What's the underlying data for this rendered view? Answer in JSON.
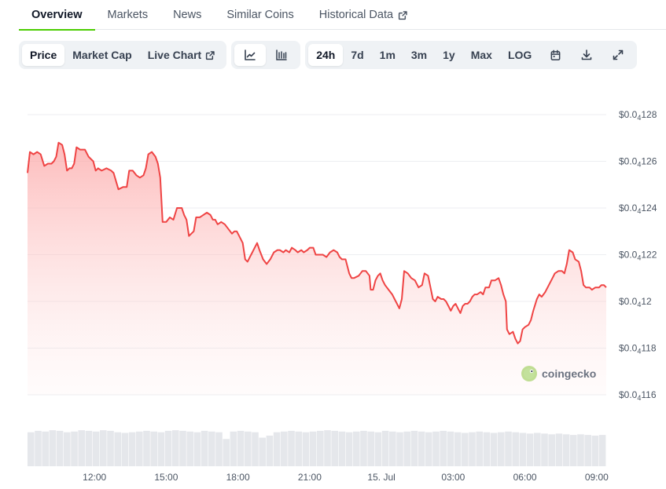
{
  "tabs": [
    {
      "label": "Overview",
      "active": true
    },
    {
      "label": "Markets",
      "active": false
    },
    {
      "label": "News",
      "active": false
    },
    {
      "label": "Similar Coins",
      "active": false
    },
    {
      "label": "Historical Data",
      "active": false,
      "external": true
    }
  ],
  "toolbar": {
    "type_buttons": [
      {
        "label": "Price",
        "active": true
      },
      {
        "label": "Market Cap",
        "active": false
      },
      {
        "label": "Live Chart",
        "active": false,
        "external": true
      }
    ],
    "chart_style_icons": [
      "line-chart-icon",
      "candlestick-chart-icon"
    ],
    "range_buttons": [
      {
        "label": "24h",
        "active": true
      },
      {
        "label": "7d",
        "active": false
      },
      {
        "label": "1m",
        "active": false
      },
      {
        "label": "3m",
        "active": false
      },
      {
        "label": "1y",
        "active": false
      },
      {
        "label": "Max",
        "active": false
      },
      {
        "label": "LOG",
        "active": false
      }
    ],
    "tool_icons": [
      "calendar-icon",
      "download-icon",
      "fullscreen-icon"
    ]
  },
  "watermark": "coingecko",
  "colors": {
    "line": "#ef4444",
    "area_top": "#fca5a5",
    "volume": "#e5e7eb",
    "active_tab_underline": "#4bcc00",
    "grid": "#eceef1"
  },
  "chart_data": {
    "type": "area",
    "y_ticks": [
      {
        "prefix": "$0.0",
        "sub": "4",
        "rest": "128",
        "value": 1.28e-05
      },
      {
        "prefix": "$0.0",
        "sub": "4",
        "rest": "126",
        "value": 1.26e-05
      },
      {
        "prefix": "$0.0",
        "sub": "4",
        "rest": "124",
        "value": 1.24e-05
      },
      {
        "prefix": "$0.0",
        "sub": "4",
        "rest": "122",
        "value": 1.22e-05
      },
      {
        "prefix": "$0.0",
        "sub": "4",
        "rest": "12",
        "value": 1.2e-05
      },
      {
        "prefix": "$0.0",
        "sub": "4",
        "rest": "118",
        "value": 1.18e-05
      },
      {
        "prefix": "$0.0",
        "sub": "4",
        "rest": "116",
        "value": 1.16e-05
      }
    ],
    "ylim": [
      1.16e-05,
      1.28e-05
    ],
    "x_ticks": [
      {
        "label": "12:00",
        "hour": 2.8
      },
      {
        "label": "15:00",
        "hour": 5.8
      },
      {
        "label": "18:00",
        "hour": 8.8
      },
      {
        "label": "21:00",
        "hour": 11.8
      },
      {
        "label": "15. Jul",
        "hour": 14.8
      },
      {
        "label": "03:00",
        "hour": 17.8
      },
      {
        "label": "06:00",
        "hour": 20.8
      },
      {
        "label": "09:00",
        "hour": 23.8
      }
    ],
    "xlim": [
      0,
      24.2
    ],
    "price_series": [
      [
        0.0,
        1.255e-05
      ],
      [
        0.1,
        1.264e-05
      ],
      [
        0.25,
        1.263e-05
      ],
      [
        0.4,
        1.264e-05
      ],
      [
        0.55,
        1.263e-05
      ],
      [
        0.7,
        1.258e-05
      ],
      [
        0.85,
        1.259e-05
      ],
      [
        1.0,
        1.259e-05
      ],
      [
        1.1,
        1.26e-05
      ],
      [
        1.2,
        1.262e-05
      ],
      [
        1.3,
        1.268e-05
      ],
      [
        1.45,
        1.267e-05
      ],
      [
        1.55,
        1.263e-05
      ],
      [
        1.65,
        1.256e-05
      ],
      [
        1.75,
        1.257e-05
      ],
      [
        1.85,
        1.257e-05
      ],
      [
        1.95,
        1.259e-05
      ],
      [
        2.05,
        1.266e-05
      ],
      [
        2.2,
        1.265e-05
      ],
      [
        2.4,
        1.265e-05
      ],
      [
        2.55,
        1.262e-05
      ],
      [
        2.75,
        1.26e-05
      ],
      [
        2.85,
        1.256e-05
      ],
      [
        2.95,
        1.257e-05
      ],
      [
        3.1,
        1.256e-05
      ],
      [
        3.3,
        1.257e-05
      ],
      [
        3.5,
        1.256e-05
      ],
      [
        3.6,
        1.255e-05
      ],
      [
        3.8,
        1.248e-05
      ],
      [
        4.0,
        1.249e-05
      ],
      [
        4.15,
        1.249e-05
      ],
      [
        4.25,
        1.256e-05
      ],
      [
        4.4,
        1.256e-05
      ],
      [
        4.55,
        1.254e-05
      ],
      [
        4.7,
        1.253e-05
      ],
      [
        4.85,
        1.254e-05
      ],
      [
        4.95,
        1.257e-05
      ],
      [
        5.05,
        1.263e-05
      ],
      [
        5.2,
        1.264e-05
      ],
      [
        5.35,
        1.262e-05
      ],
      [
        5.45,
        1.259e-05
      ],
      [
        5.55,
        1.253e-05
      ],
      [
        5.65,
        1.234e-05
      ],
      [
        5.8,
        1.234e-05
      ],
      [
        5.95,
        1.236e-05
      ],
      [
        6.1,
        1.235e-05
      ],
      [
        6.25,
        1.24e-05
      ],
      [
        6.45,
        1.24e-05
      ],
      [
        6.55,
        1.237e-05
      ],
      [
        6.65,
        1.235e-05
      ],
      [
        6.75,
        1.228e-05
      ],
      [
        6.85,
        1.229e-05
      ],
      [
        6.95,
        1.23e-05
      ],
      [
        7.05,
        1.236e-05
      ],
      [
        7.2,
        1.236e-05
      ],
      [
        7.35,
        1.237e-05
      ],
      [
        7.5,
        1.238e-05
      ],
      [
        7.65,
        1.237e-05
      ],
      [
        7.75,
        1.235e-05
      ],
      [
        7.85,
        1.235e-05
      ],
      [
        7.95,
        1.233e-05
      ],
      [
        8.1,
        1.234e-05
      ],
      [
        8.25,
        1.233e-05
      ],
      [
        8.4,
        1.231e-05
      ],
      [
        8.55,
        1.229e-05
      ],
      [
        8.65,
        1.23e-05
      ],
      [
        8.75,
        1.23e-05
      ],
      [
        8.85,
        1.228e-05
      ],
      [
        9.0,
        1.225e-05
      ],
      [
        9.1,
        1.218e-05
      ],
      [
        9.2,
        1.217e-05
      ],
      [
        9.3,
        1.219e-05
      ],
      [
        9.4,
        1.221e-05
      ],
      [
        9.5,
        1.223e-05
      ],
      [
        9.6,
        1.225e-05
      ],
      [
        9.7,
        1.222e-05
      ],
      [
        9.85,
        1.218e-05
      ],
      [
        10.0,
        1.216e-05
      ],
      [
        10.15,
        1.218e-05
      ],
      [
        10.3,
        1.221e-05
      ],
      [
        10.45,
        1.222e-05
      ],
      [
        10.55,
        1.222e-05
      ],
      [
        10.7,
        1.221e-05
      ],
      [
        10.8,
        1.222e-05
      ],
      [
        10.95,
        1.221e-05
      ],
      [
        11.05,
        1.223e-05
      ],
      [
        11.2,
        1.222e-05
      ],
      [
        11.3,
        1.221e-05
      ],
      [
        11.45,
        1.222e-05
      ],
      [
        11.55,
        1.221e-05
      ],
      [
        11.7,
        1.222e-05
      ],
      [
        11.8,
        1.223e-05
      ],
      [
        11.95,
        1.223e-05
      ],
      [
        12.05,
        1.22e-05
      ],
      [
        12.2,
        1.22e-05
      ],
      [
        12.35,
        1.22e-05
      ],
      [
        12.5,
        1.219e-05
      ],
      [
        12.65,
        1.221e-05
      ],
      [
        12.8,
        1.222e-05
      ],
      [
        12.95,
        1.221e-05
      ],
      [
        13.05,
        1.219e-05
      ],
      [
        13.15,
        1.218e-05
      ],
      [
        13.3,
        1.218e-05
      ],
      [
        13.45,
        1.212e-05
      ],
      [
        13.55,
        1.21e-05
      ],
      [
        13.65,
        1.21e-05
      ],
      [
        13.85,
        1.211e-05
      ],
      [
        14.0,
        1.213e-05
      ],
      [
        14.15,
        1.213e-05
      ],
      [
        14.3,
        1.211e-05
      ],
      [
        14.35,
        1.205e-05
      ],
      [
        14.45,
        1.205e-05
      ],
      [
        14.55,
        1.209e-05
      ],
      [
        14.65,
        1.211e-05
      ],
      [
        14.75,
        1.212e-05
      ],
      [
        14.85,
        1.209e-05
      ],
      [
        14.95,
        1.207e-05
      ],
      [
        15.1,
        1.205e-05
      ],
      [
        15.25,
        1.203e-05
      ],
      [
        15.35,
        1.201e-05
      ],
      [
        15.45,
        1.199e-05
      ],
      [
        15.55,
        1.197e-05
      ],
      [
        15.65,
        1.201e-05
      ],
      [
        15.75,
        1.213e-05
      ],
      [
        15.9,
        1.212e-05
      ],
      [
        16.05,
        1.21e-05
      ],
      [
        16.2,
        1.209e-05
      ],
      [
        16.35,
        1.206e-05
      ],
      [
        16.5,
        1.207e-05
      ],
      [
        16.6,
        1.212e-05
      ],
      [
        16.75,
        1.211e-05
      ],
      [
        16.85,
        1.206e-05
      ],
      [
        16.95,
        1.201e-05
      ],
      [
        17.05,
        1.2e-05
      ],
      [
        17.15,
        1.202e-05
      ],
      [
        17.3,
        1.201e-05
      ],
      [
        17.4,
        1.201e-05
      ],
      [
        17.5,
        1.2e-05
      ],
      [
        17.6,
        1.198e-05
      ],
      [
        17.7,
        1.196e-05
      ],
      [
        17.8,
        1.198e-05
      ],
      [
        17.9,
        1.199e-05
      ],
      [
        18.0,
        1.197e-05
      ],
      [
        18.1,
        1.195e-05
      ],
      [
        18.2,
        1.198e-05
      ],
      [
        18.3,
        1.199e-05
      ],
      [
        18.4,
        1.199e-05
      ],
      [
        18.5,
        1.2e-05
      ],
      [
        18.6,
        1.202e-05
      ],
      [
        18.7,
        1.203e-05
      ],
      [
        18.8,
        1.203e-05
      ],
      [
        18.95,
        1.204e-05
      ],
      [
        19.05,
        1.203e-05
      ],
      [
        19.15,
        1.206e-05
      ],
      [
        19.3,
        1.206e-05
      ],
      [
        19.4,
        1.209e-05
      ],
      [
        19.55,
        1.209e-05
      ],
      [
        19.7,
        1.21e-05
      ],
      [
        19.8,
        1.207e-05
      ],
      [
        19.9,
        1.203e-05
      ],
      [
        20.0,
        1.2e-05
      ],
      [
        20.05,
        1.188e-05
      ],
      [
        20.15,
        1.186e-05
      ],
      [
        20.3,
        1.187e-05
      ],
      [
        20.4,
        1.184e-05
      ],
      [
        20.5,
        1.182e-05
      ],
      [
        20.6,
        1.183e-05
      ],
      [
        20.7,
        1.188e-05
      ],
      [
        20.8,
        1.189e-05
      ],
      [
        20.95,
        1.19e-05
      ],
      [
        21.05,
        1.192e-05
      ],
      [
        21.15,
        1.196e-05
      ],
      [
        21.3,
        1.201e-05
      ],
      [
        21.4,
        1.203e-05
      ],
      [
        21.5,
        1.202e-05
      ],
      [
        21.65,
        1.204e-05
      ],
      [
        21.8,
        1.207e-05
      ],
      [
        21.95,
        1.21e-05
      ],
      [
        22.05,
        1.212e-05
      ],
      [
        22.2,
        1.213e-05
      ],
      [
        22.35,
        1.213e-05
      ],
      [
        22.45,
        1.212e-05
      ],
      [
        22.55,
        1.216e-05
      ],
      [
        22.65,
        1.222e-05
      ],
      [
        22.8,
        1.221e-05
      ],
      [
        22.9,
        1.218e-05
      ],
      [
        23.05,
        1.217e-05
      ],
      [
        23.15,
        1.213e-05
      ],
      [
        23.25,
        1.207e-05
      ],
      [
        23.35,
        1.206e-05
      ],
      [
        23.5,
        1.206e-05
      ],
      [
        23.6,
        1.205e-05
      ],
      [
        23.75,
        1.206e-05
      ],
      [
        23.9,
        1.206e-05
      ],
      [
        24.0,
        1.207e-05
      ],
      [
        24.1,
        1.207e-05
      ],
      [
        24.2,
        1.206e-05
      ]
    ],
    "series": [
      {
        "values": [
          0.5,
          0.52,
          0.51,
          0.53,
          0.52,
          0.5,
          0.51,
          0.53,
          0.52,
          0.51,
          0.53,
          0.52,
          0.5,
          0.49,
          0.5,
          0.51,
          0.52,
          0.51,
          0.5,
          0.52,
          0.53,
          0.52,
          0.51,
          0.5,
          0.52,
          0.51,
          0.5,
          0.4,
          0.51,
          0.52,
          0.51,
          0.5,
          0.42,
          0.45,
          0.5,
          0.51,
          0.52,
          0.51,
          0.5,
          0.51,
          0.52,
          0.53,
          0.52,
          0.51,
          0.5,
          0.51,
          0.52,
          0.51,
          0.5,
          0.52,
          0.51,
          0.5,
          0.51,
          0.52,
          0.51,
          0.5,
          0.51,
          0.52,
          0.51,
          0.5,
          0.49,
          0.5,
          0.51,
          0.5,
          0.49,
          0.5,
          0.51,
          0.5,
          0.49,
          0.48,
          0.49,
          0.48,
          0.47,
          0.48,
          0.47,
          0.46,
          0.47,
          0.46,
          0.45,
          0.46
        ]
      }
    ]
  }
}
